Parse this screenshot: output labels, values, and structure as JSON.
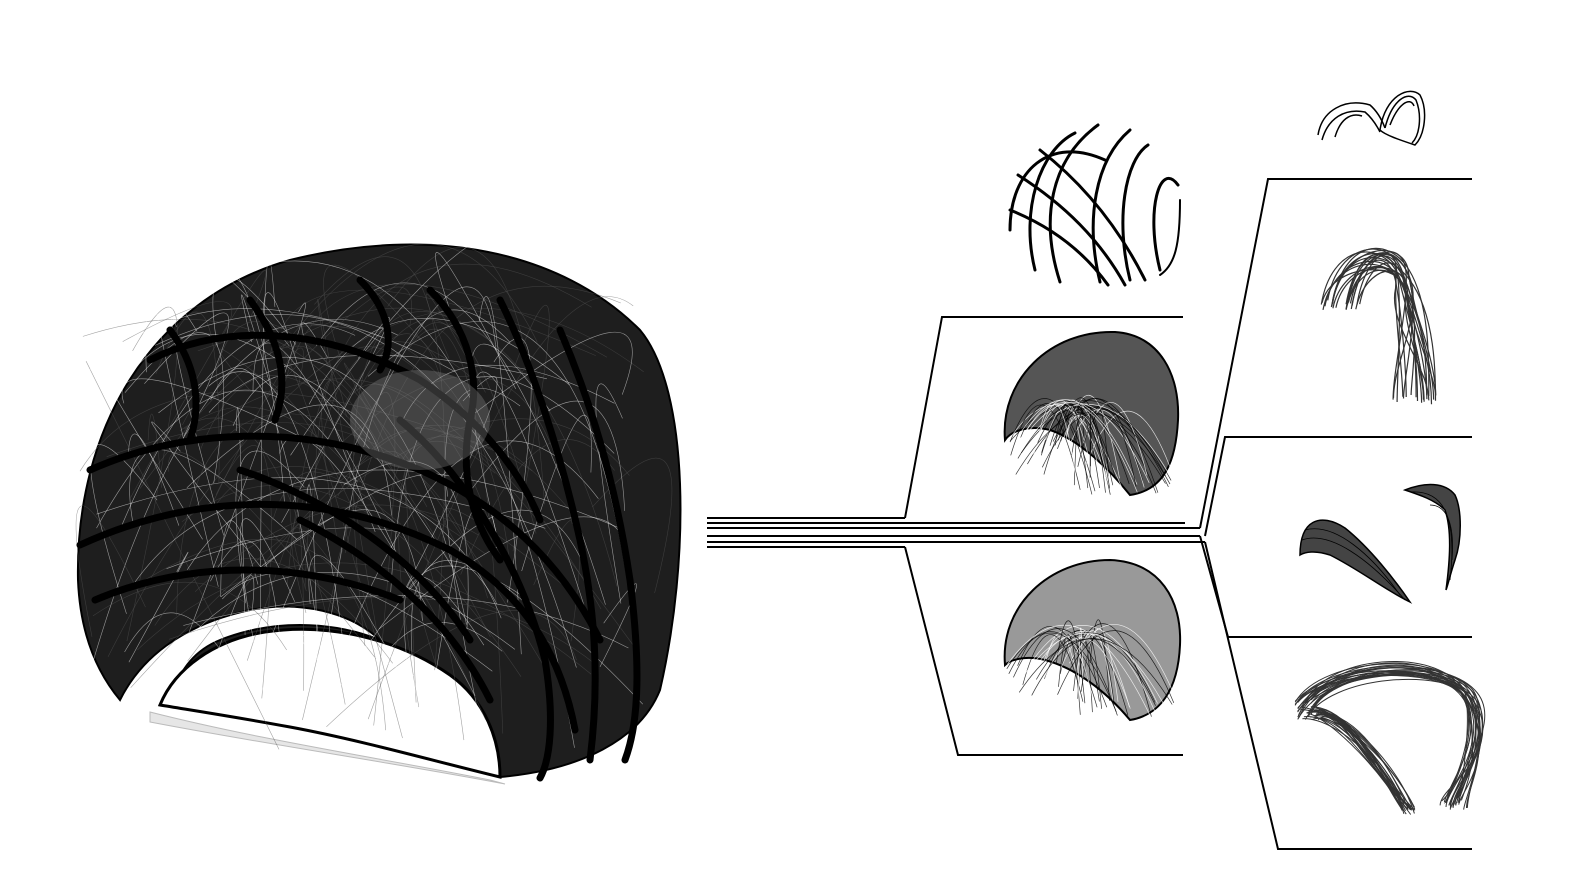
{
  "figure": {
    "background": "#ffffff",
    "ink": "#000000",
    "main_model": {
      "name": "fiber-shell-pavilion"
    },
    "tree": {
      "trunk_lines": 6,
      "branches": [
        {
          "name": "branch-upper",
          "panels": [
            "strand-arches",
            "shell-combined"
          ]
        },
        {
          "name": "branch-lower",
          "panels": [
            "shell-combined-alt"
          ]
        },
        {
          "name": "branch-far-1",
          "panels": [
            "top-fragment",
            "vertical-strands"
          ]
        },
        {
          "name": "branch-far-2",
          "panels": [
            "split-fragments",
            "open-arch-shell"
          ]
        }
      ]
    }
  }
}
